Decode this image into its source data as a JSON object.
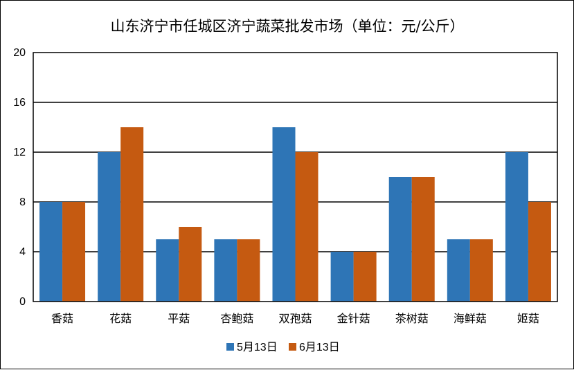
{
  "chart_data": {
    "type": "bar",
    "title": "山东济宁市任城区济宁蔬菜批发市场（单位：元/公斤）",
    "xlabel": "",
    "ylabel": "",
    "categories": [
      "香菇",
      "花菇",
      "平菇",
      "杏鲍菇",
      "双孢菇",
      "金针菇",
      "茶树菇",
      "海鲜菇",
      "姬菇"
    ],
    "series": [
      {
        "name": "5月13日",
        "color": "#2E75B6",
        "values": [
          8,
          12,
          5,
          5,
          14,
          4,
          10,
          5,
          12
        ]
      },
      {
        "name": "6月13日",
        "color": "#C55A11",
        "values": [
          8,
          14,
          6,
          5,
          12,
          4,
          10,
          5,
          8
        ]
      }
    ],
    "ylim": [
      0,
      20
    ],
    "yticks": [
      0,
      4,
      8,
      12,
      16,
      20
    ],
    "grid": true,
    "legend_position": "bottom"
  }
}
